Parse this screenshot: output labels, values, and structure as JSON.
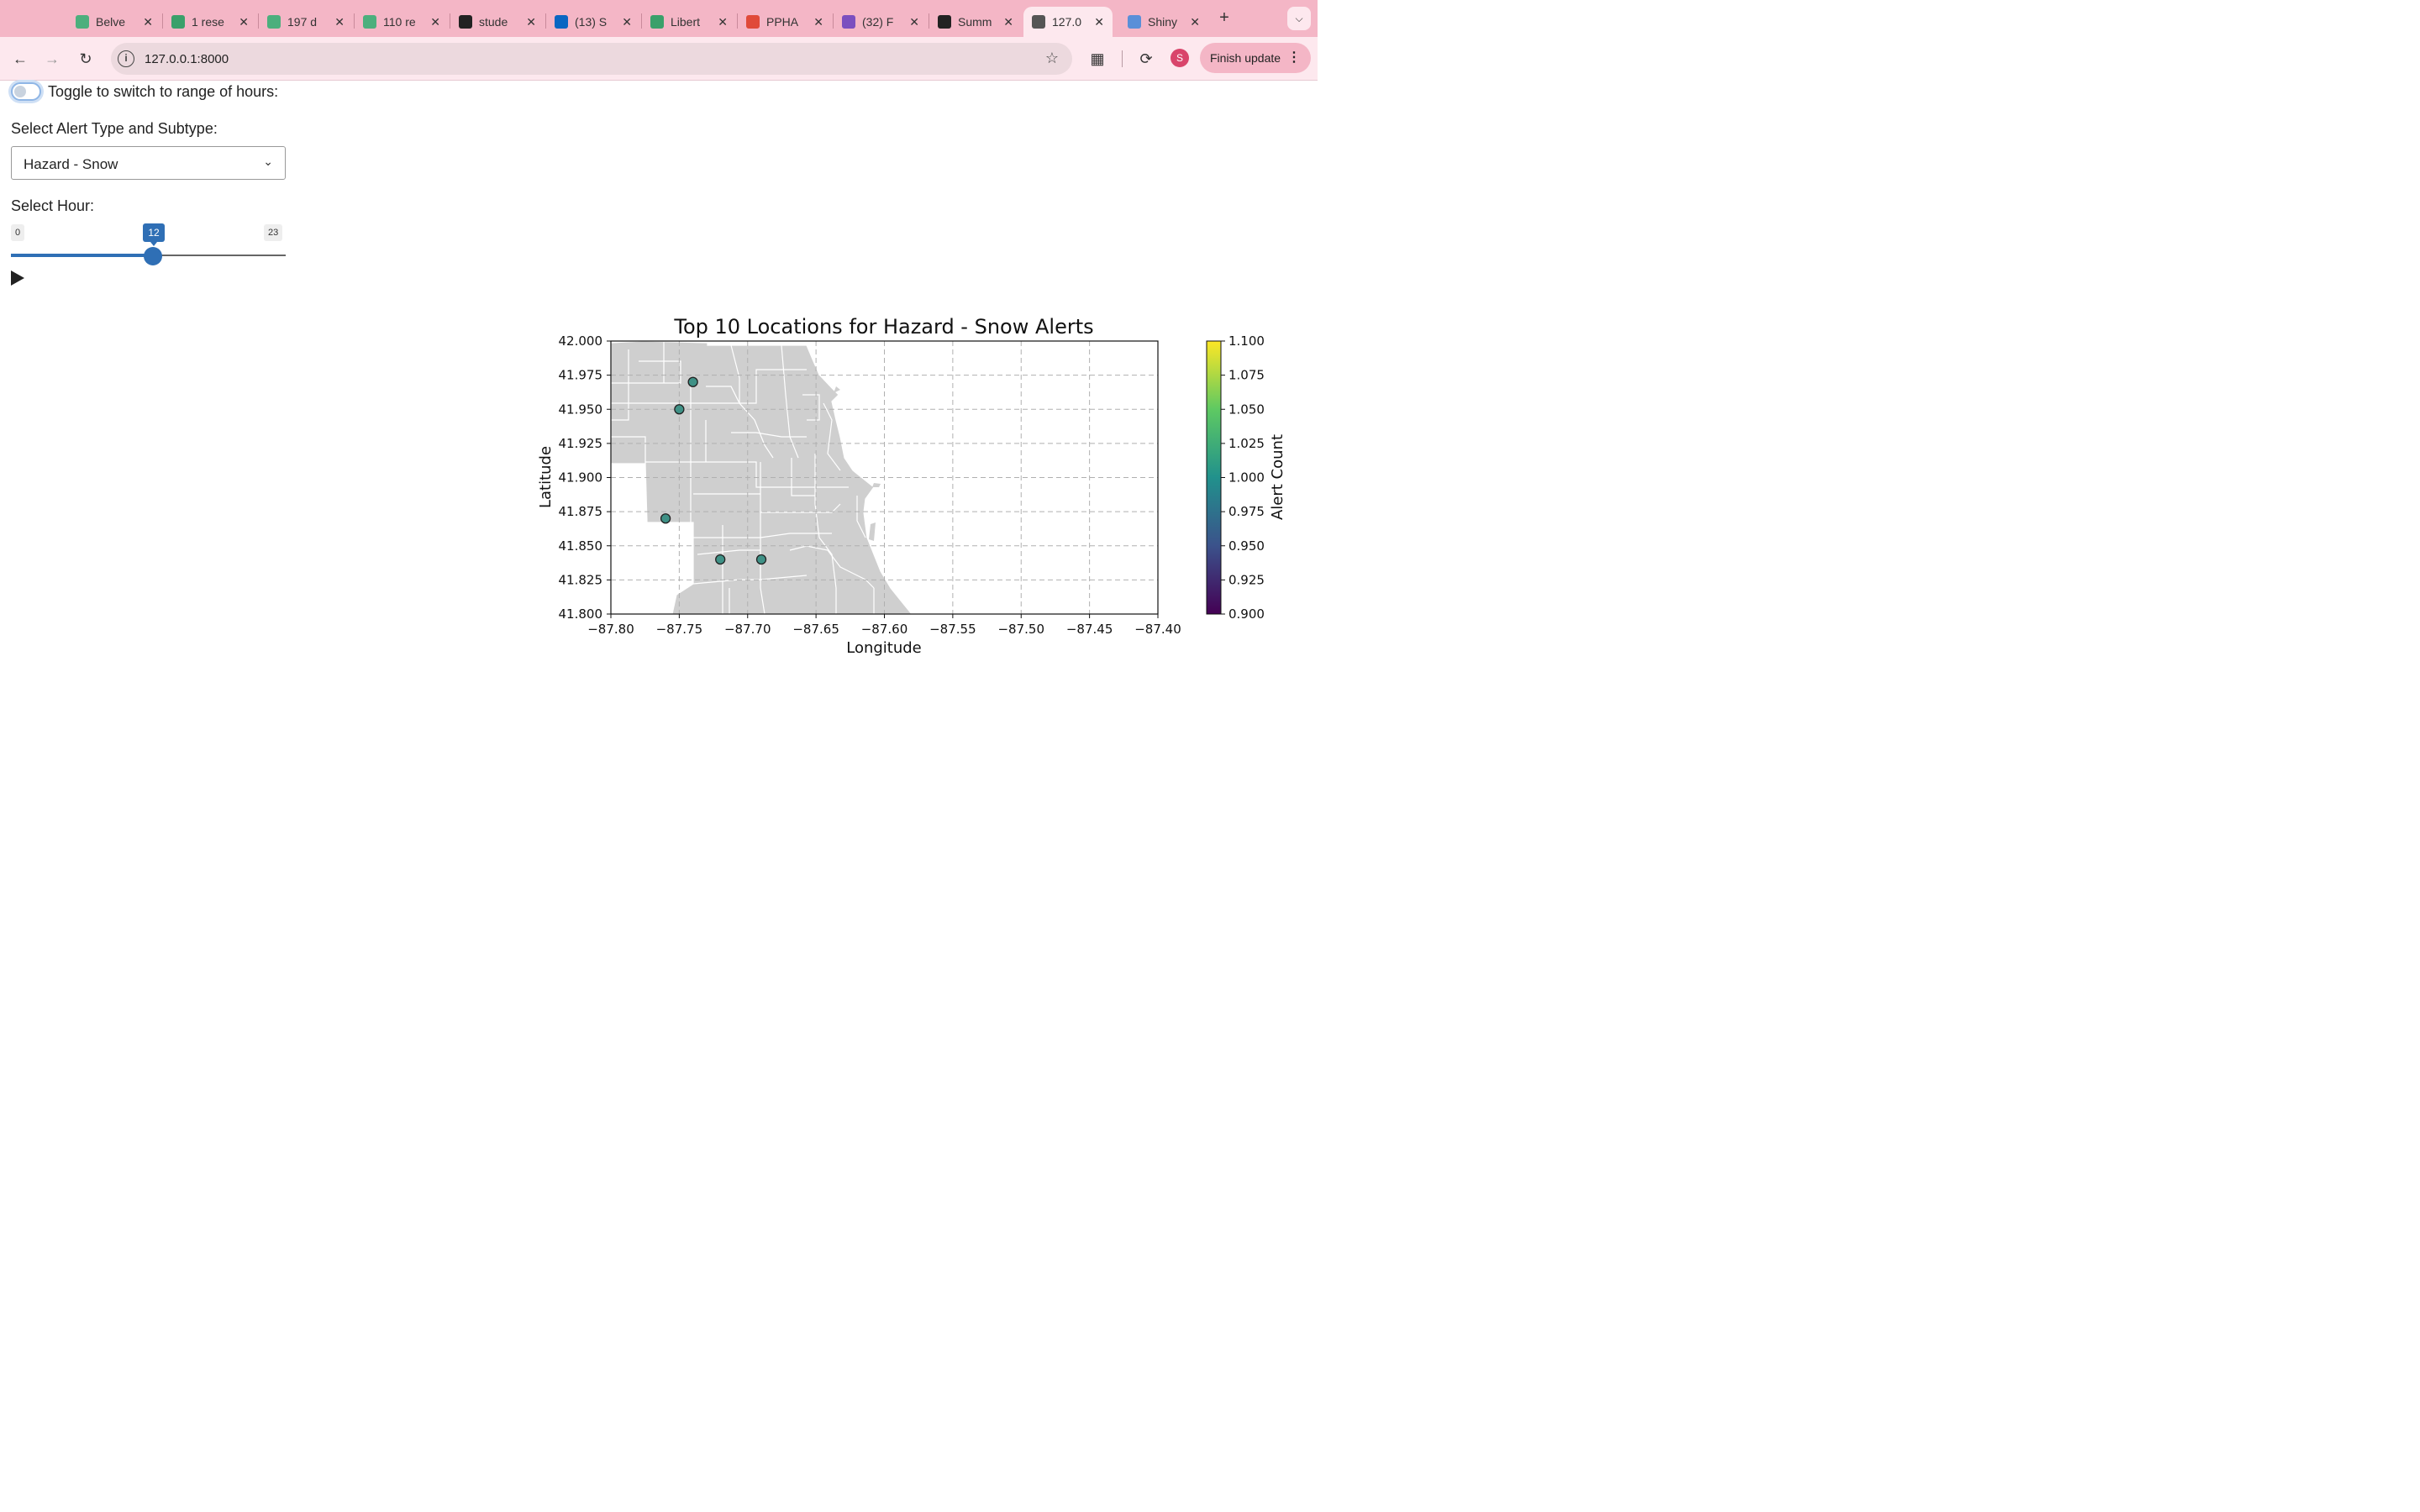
{
  "browser": {
    "tabs": [
      {
        "title": "Belve",
        "color": "#4caf7d",
        "active": false
      },
      {
        "title": "1 rese",
        "color": "#3aa06a",
        "active": false
      },
      {
        "title": "197 d",
        "color": "#4caf7d",
        "active": false
      },
      {
        "title": "110 re",
        "color": "#4caf7d",
        "active": false
      },
      {
        "title": "stude",
        "color": "#222222",
        "active": false
      },
      {
        "title": "(13) S",
        "color": "#0a66c2",
        "active": false
      },
      {
        "title": "Libert",
        "color": "#3aa06a",
        "active": false
      },
      {
        "title": "PPHA",
        "color": "#e04a3a",
        "active": false
      },
      {
        "title": "(32) F",
        "color": "#7b4fbf",
        "active": false
      },
      {
        "title": "Summ",
        "color": "#222222",
        "active": false
      },
      {
        "title": "127.0",
        "color": "#555555",
        "active": true
      },
      {
        "title": "Shiny",
        "color": "#5a8fd8",
        "active": false
      }
    ],
    "url": "127.0.0.1:8000",
    "avatar_initial": "S",
    "finish_update_label": "Finish update"
  },
  "controls": {
    "toggle_label": "Toggle to switch to range of hours:",
    "alert_label": "Select Alert Type and Subtype:",
    "alert_value": "Hazard - Snow",
    "hour_label": "Select Hour:",
    "hour_min": 0,
    "hour_max": 23,
    "hour_value": 12
  },
  "chart_data": {
    "type": "scatter",
    "title": "Top 10 Locations for Hazard - Snow Alerts",
    "xlabel": "Longitude",
    "ylabel": "Latitude",
    "xlim": [
      -87.8,
      -87.4
    ],
    "ylim": [
      41.8,
      42.0
    ],
    "xticks": [
      "−87.80",
      "−87.75",
      "−87.70",
      "−87.65",
      "−87.60",
      "−87.55",
      "−87.50",
      "−87.45",
      "−87.40"
    ],
    "yticks": [
      "42.000",
      "41.975",
      "41.950",
      "41.925",
      "41.900",
      "41.875",
      "41.850",
      "41.825",
      "41.800"
    ],
    "grid": true,
    "points": [
      {
        "x": -87.74,
        "y": 41.97,
        "count": 1.0
      },
      {
        "x": -87.75,
        "y": 41.95,
        "count": 1.0
      },
      {
        "x": -87.76,
        "y": 41.87,
        "count": 1.0
      },
      {
        "x": -87.72,
        "y": 41.84,
        "count": 1.0
      },
      {
        "x": -87.69,
        "y": 41.84,
        "count": 1.0
      }
    ],
    "colorbar": {
      "label": "Alert Count",
      "min": 0.9,
      "max": 1.1,
      "ticks": [
        "1.100",
        "1.075",
        "1.050",
        "1.025",
        "1.000",
        "0.975",
        "0.950",
        "0.925",
        "0.900"
      ]
    },
    "point_color": "#3f9186",
    "map_color": "#cfcfcf"
  }
}
